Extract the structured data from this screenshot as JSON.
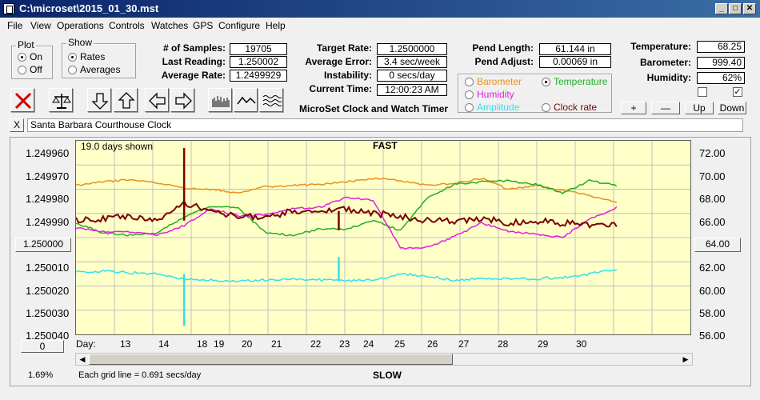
{
  "window": {
    "title": "C:\\microset\\2015_01_30.mst"
  },
  "menu": [
    "File",
    "View",
    "Operations",
    "Controls",
    "Watches",
    "GPS",
    "Configure",
    "Help"
  ],
  "plot_group": {
    "title": "Plot",
    "on": "On",
    "off": "Off"
  },
  "show_group": {
    "title": "Show",
    "rates": "Rates",
    "averages": "Averages"
  },
  "stats": {
    "samples_label": "# of Samples:",
    "samples": "19705",
    "last_label": "Last Reading:",
    "last": "1.250002",
    "avg_label": "Average Rate:",
    "avg": "1.2499929",
    "target_label": "Target Rate:",
    "target": "1.2500000",
    "avgerr_label": "Average Error:",
    "avgerr": "3.4 sec/week",
    "instab_label": "Instability:",
    "instab": "0 secs/day",
    "time_label": "Current Time:",
    "time": "12:00:23 AM",
    "pendlen_label": "Pend Length:",
    "pendlen": "61.144 in",
    "pendadj_label": "Pend Adjust:",
    "pendadj": "0.00069 in",
    "temp_label": "Temperature:",
    "temp": "68.25",
    "baro_label": "Barometer:",
    "baro": "999.40",
    "hum_label": "Humidity:",
    "hum": "62%"
  },
  "app_caption": "MicroSet Clock and Watch Timer",
  "series_options": {
    "barometer": "Barometer",
    "temperature": "Temperature",
    "humidity": "Humidity",
    "amplitude": "Amplitude",
    "clockrate": "Clock rate"
  },
  "adjust_buttons": {
    "plus": "+",
    "minus": "—",
    "up": "Up",
    "down": "Down"
  },
  "clock_name": "Santa Barbara Courthouse Clock",
  "clock_close": "X",
  "chart_info": {
    "days_shown": "19.0 days shown",
    "fast": "FAST",
    "slow": "SLOW",
    "grid_note": "Each grid line = 0.691 secs/day",
    "percent": "1.69%",
    "day_label": "Day:",
    "left_value": "1.250000",
    "right_value": "64.00",
    "bottom_btn": "0"
  },
  "colors": {
    "barometer": "#e89020",
    "temperature": "#20b020",
    "humidity": "#e020e0",
    "amplitude": "#30e0f0",
    "clockrate": "#7a0000",
    "plot_bg": "#ffffc8"
  },
  "chart_data": {
    "type": "line",
    "xlabel": "Day:",
    "x_ticks": [
      "13",
      "14",
      "18",
      "19",
      "20",
      "21",
      "22",
      "23",
      "24",
      "25",
      "26",
      "27",
      "28",
      "29",
      "30"
    ],
    "y_left_ticks": [
      "1.249960",
      "1.249970",
      "1.249980",
      "1.249990",
      "1.250000",
      "1.250010",
      "1.250020",
      "1.250030",
      "1.250040"
    ],
    "y_right_ticks": [
      "72.00",
      "70.00",
      "68.00",
      "66.00",
      "64.00",
      "62.00",
      "60.00",
      "58.00",
      "56.00"
    ],
    "ylim_left": [
      1.24996,
      1.25004
    ],
    "ylim_right": [
      56,
      72
    ],
    "grid": true,
    "series": [
      {
        "key": "barometer",
        "x": [
          0,
          0.05,
          0.1,
          0.15,
          0.2,
          0.25,
          0.3,
          0.35,
          0.4,
          0.45,
          0.5,
          0.55,
          0.6,
          0.65,
          0.7,
          0.75,
          0.8,
          0.85,
          0.9,
          0.95,
          1.0
        ],
        "values": [
          68.3,
          68.6,
          68.8,
          68.5,
          68.1,
          68.0,
          67.7,
          68.2,
          68.3,
          68.4,
          68.6,
          68.9,
          68.7,
          68.3,
          68.5,
          68.9,
          68.0,
          68.3,
          67.9,
          67.5,
          66.9
        ]
      },
      {
        "key": "temperature",
        "x": [
          0,
          0.05,
          0.1,
          0.15,
          0.2,
          0.25,
          0.3,
          0.35,
          0.4,
          0.45,
          0.5,
          0.55,
          0.6,
          0.65,
          0.7,
          0.75,
          0.8,
          0.85,
          0.9,
          0.95,
          1.0
        ],
        "values": [
          65.2,
          64.4,
          64.2,
          64.4,
          65.7,
          66.6,
          66.5,
          64.4,
          64.2,
          64.7,
          64.7,
          65.4,
          64.6,
          67.3,
          68.4,
          68.6,
          68.7,
          68.4,
          67.7,
          68.7,
          68.3
        ]
      },
      {
        "key": "humidity",
        "x": [
          0,
          0.05,
          0.1,
          0.15,
          0.2,
          0.25,
          0.3,
          0.35,
          0.4,
          0.45,
          0.5,
          0.55,
          0.6,
          0.65,
          0.7,
          0.75,
          0.8,
          0.85,
          0.9,
          0.95,
          1.0
        ],
        "values": [
          64.8,
          64.5,
          64.5,
          64.2,
          65.0,
          66.4,
          65.8,
          65.9,
          66.4,
          66.5,
          67.3,
          67.1,
          63.1,
          63.2,
          64.1,
          65.2,
          64.5,
          64.3,
          64.0,
          65.5,
          66.5
        ]
      },
      {
        "key": "amplitude",
        "x": [
          0,
          0.05,
          0.1,
          0.15,
          0.2,
          0.25,
          0.3,
          0.35,
          0.4,
          0.45,
          0.5,
          0.55,
          0.6,
          0.65,
          0.7,
          0.75,
          0.8,
          0.85,
          0.9,
          0.95,
          1.0
        ],
        "values": [
          61.2,
          61.2,
          61.1,
          61.0,
          60.6,
          60.5,
          60.4,
          60.5,
          60.6,
          60.5,
          60.4,
          60.5,
          61.0,
          60.8,
          60.5,
          60.6,
          60.6,
          60.6,
          60.7,
          61.0,
          61.4
        ]
      },
      {
        "key": "clockrate",
        "x": [
          0,
          0.05,
          0.1,
          0.15,
          0.2,
          0.25,
          0.3,
          0.35,
          0.4,
          0.45,
          0.5,
          0.55,
          0.6,
          0.65,
          0.7,
          0.75,
          0.8,
          0.85,
          0.9,
          0.95,
          1.0
        ],
        "values": [
          1.249993,
          1.249992,
          1.249991,
          1.249993,
          1.249986,
          1.249989,
          1.249991,
          1.249992,
          1.249989,
          1.249989,
          1.249988,
          1.24999,
          1.249991,
          1.249993,
          1.249993,
          1.249992,
          1.249994,
          1.249993,
          1.249994,
          1.249995,
          1.249995
        ]
      }
    ],
    "spikes": [
      {
        "key": "clockrate",
        "x": 0.2,
        "value": 1.249963
      },
      {
        "key": "amplitude",
        "x": 0.2,
        "value": 56.7
      },
      {
        "key": "clockrate",
        "x": 0.486,
        "value": 1.249997
      },
      {
        "key": "amplitude",
        "x": 0.486,
        "value": 62.4
      }
    ]
  }
}
